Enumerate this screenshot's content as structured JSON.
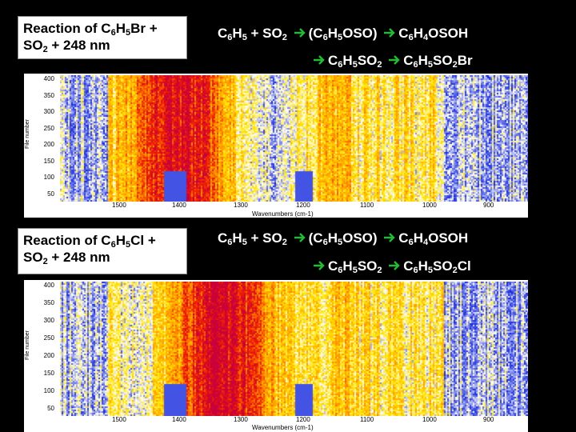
{
  "slide": {
    "panel1": {
      "title": {
        "a": "Reaction of C",
        "b": "6",
        "c": "H",
        "d": "5",
        "e": "Br +",
        "f": "SO",
        "g": "2",
        "h": " + 248 nm"
      },
      "eq_line1": {
        "t1": "C",
        "s1": "6",
        "t2": "H",
        "s2": "5",
        "t3": " + SO",
        "s3": "2",
        "t4": "(C",
        "s4": "6",
        "t5": "H",
        "s5": "5",
        "t6": "OSO)",
        "t7": "C",
        "s7": "6",
        "t8": "H",
        "s8": "4",
        "t9": "OSOH"
      },
      "eq_line2": {
        "t1": "C",
        "s1": "6",
        "t2": "H",
        "s2": "5",
        "t3": "SO",
        "s3": "2",
        "t4": "C",
        "s4": "6",
        "t5": "H",
        "s5": "5",
        "t6": "SO",
        "s6": "2",
        "t7": "Br"
      },
      "plot": {
        "ylabel": "File number",
        "xlabel": "Wavenumbers (cm-1)",
        "yticks": [
          "400",
          "350",
          "300",
          "250",
          "200",
          "150",
          "100",
          "50"
        ],
        "xticks": [
          "1500",
          "1400",
          "1300",
          "1200",
          "1100",
          "1000",
          "900"
        ]
      }
    },
    "panel2": {
      "title": {
        "a": "Reaction of C",
        "b": "6",
        "c": "H",
        "d": "5",
        "e": "Cl +",
        "f": "SO",
        "g": "2",
        "h": " + 248 nm"
      },
      "eq_line1": {
        "t1": "C",
        "s1": "6",
        "t2": "H",
        "s2": "5",
        "t3": " + SO",
        "s3": "2",
        "t4": "(C",
        "s4": "6",
        "t5": "H",
        "s5": "5",
        "t6": "OSO)",
        "t7": "C",
        "s7": "6",
        "t8": "H",
        "s8": "4",
        "t9": "OSOH"
      },
      "eq_line2": {
        "t1": "C",
        "s1": "6",
        "t2": "H",
        "s2": "5",
        "t3": "SO",
        "s3": "2",
        "t4": "C",
        "s4": "6",
        "t5": "H",
        "s5": "5",
        "t6": "SO",
        "s6": "2",
        "t7": "Cl"
      },
      "plot": {
        "ylabel": "File number",
        "xlabel": "Wavenumbers (cm-1)",
        "yticks": [
          "400",
          "350",
          "300",
          "250",
          "200",
          "150",
          "100",
          "50"
        ],
        "xticks": [
          "1500",
          "1400",
          "1300",
          "1200",
          "1100",
          "1000",
          "900"
        ]
      }
    },
    "colors": {
      "arrow": "#22bb33",
      "background": "#000000"
    }
  }
}
